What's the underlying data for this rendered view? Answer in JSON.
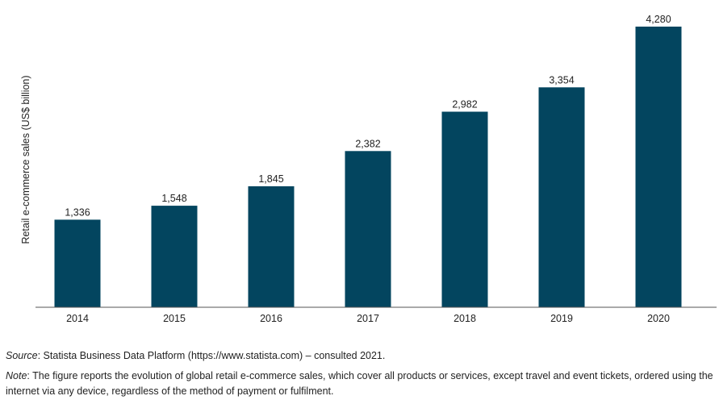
{
  "chart_data": {
    "type": "bar",
    "categories": [
      "2014",
      "2015",
      "2016",
      "2017",
      "2018",
      "2019",
      "2020"
    ],
    "values": [
      1336,
      1548,
      1845,
      2382,
      2982,
      3354,
      4280
    ],
    "value_labels": [
      "1,336",
      "1,548",
      "1,845",
      "2,382",
      "2,982",
      "3,354",
      "4,280"
    ],
    "title": "",
    "xlabel": "",
    "ylabel": "Retail e-commerce sales (US$ billion)",
    "ylim": [
      0,
      4280
    ],
    "grid": false,
    "bar_color": "#03455f"
  },
  "footer": {
    "source_label": "Source",
    "source_text": ": Statista Business Data Platform (https://www.statista.com) – consulted 2021.",
    "note_label": "Note",
    "note_text": ": The figure reports the evolution of global retail e-commerce sales, which cover all products or services, except travel and event tickets, ordered using the internet via any device, regardless of the method of payment or fulfilment."
  }
}
